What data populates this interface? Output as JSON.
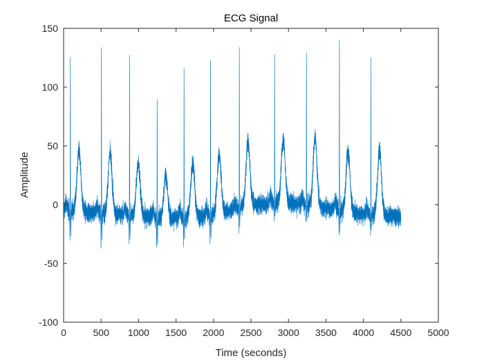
{
  "chart_data": {
    "type": "line",
    "title": "ECG Signal",
    "xlabel": "Time (seconds)",
    "ylabel": "Amplitude",
    "xlim": [
      0,
      5000
    ],
    "ylim": [
      -100,
      150
    ],
    "xticks": [
      0,
      500,
      1000,
      1500,
      2000,
      2500,
      3000,
      3500,
      4000,
      4500,
      5000
    ],
    "yticks": [
      -100,
      -50,
      0,
      50,
      100,
      150
    ],
    "grid": false,
    "box": true,
    "line_color": "#0072BD",
    "x_range_data": [
      0,
      4500
    ],
    "beats": [
      {
        "x": 90,
        "r_peak": 136,
        "s_trough": -48,
        "t_peak": 59
      },
      {
        "x": 505,
        "r_peak": 150,
        "s_trough": -55,
        "t_peak": 59
      },
      {
        "x": 880,
        "r_peak": 138,
        "s_trough": -47,
        "t_peak": 52
      },
      {
        "x": 1248,
        "r_peak": 106,
        "s_trough": -54,
        "t_peak": 45
      },
      {
        "x": 1607,
        "r_peak": 134,
        "s_trough": -46,
        "t_peak": 54
      },
      {
        "x": 1960,
        "r_peak": 140,
        "s_trough": -48,
        "t_peak": 58
      },
      {
        "x": 2345,
        "r_peak": 139,
        "s_trough": -38,
        "t_peak": 63
      },
      {
        "x": 2815,
        "r_peak": 131,
        "s_trough": -30,
        "t_peak": 62
      },
      {
        "x": 3240,
        "r_peak": 132,
        "s_trough": -32,
        "t_peak": 66
      },
      {
        "x": 3680,
        "r_peak": 149,
        "s_trough": -40,
        "t_peak": 59
      },
      {
        "x": 4100,
        "r_peak": 135,
        "s_trough": -35,
        "t_peak": 62
      }
    ],
    "baseline": [
      {
        "x": 0,
        "y": -5
      },
      {
        "x": 700,
        "y": -8
      },
      {
        "x": 1400,
        "y": -12
      },
      {
        "x": 1900,
        "y": -10
      },
      {
        "x": 2500,
        "y": 0
      },
      {
        "x": 3000,
        "y": 2
      },
      {
        "x": 3500,
        "y": -3
      },
      {
        "x": 4000,
        "y": -8
      },
      {
        "x": 4500,
        "y": -10
      }
    ],
    "noise_amplitude": 10
  }
}
